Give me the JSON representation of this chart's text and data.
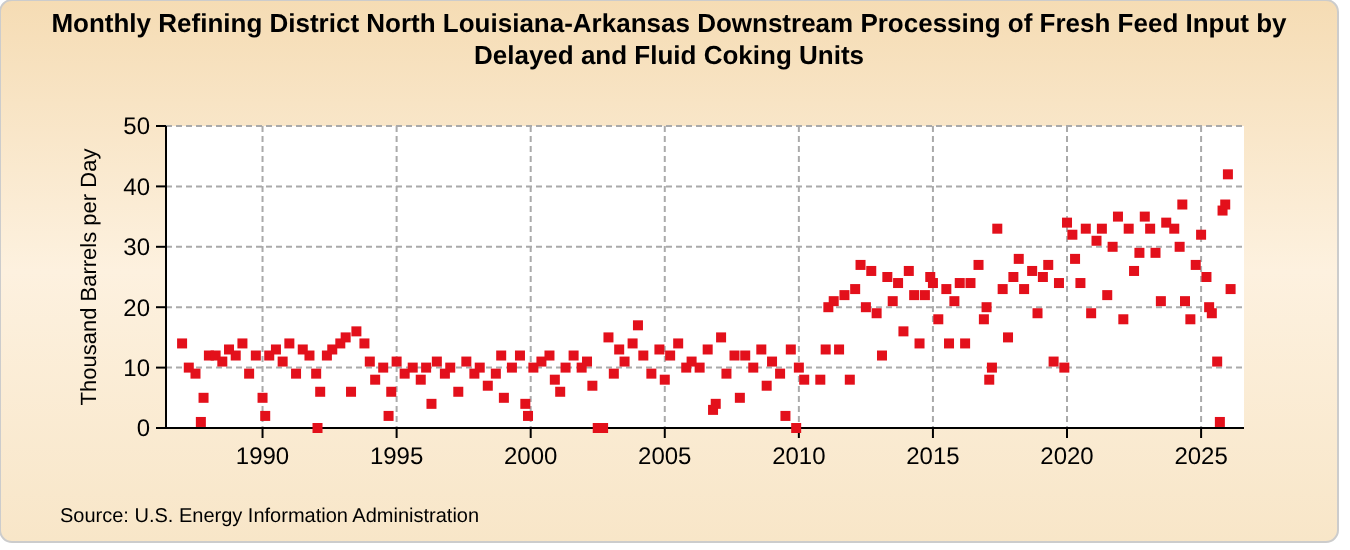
{
  "chart_data": {
    "type": "scatter",
    "title": "Monthly Refining District North Louisiana-Arkansas Downstream Processing of Fresh Feed Input by Delayed and Fluid Coking Units",
    "ylabel": "Thousand Barrels per Day",
    "annotations": [
      "Source: U.S. Energy Information Administration"
    ],
    "xlim": [
      1986.4,
      2026.6
    ],
    "xticks": [
      1990,
      1995,
      2000,
      2005,
      2010,
      2015,
      2020,
      2025
    ],
    "ylim": [
      0,
      50
    ],
    "yticks": [
      0,
      10,
      20,
      30,
      40,
      50
    ],
    "grid": true,
    "marker": "square",
    "series": [
      {
        "color": "#e3101b",
        "x": [
          1987.0,
          1987.25,
          1987.5,
          1987.7,
          1987.8,
          1988.0,
          1988.25,
          1988.5,
          1988.75,
          1989.0,
          1989.25,
          1989.5,
          1989.75,
          1990.0,
          1990.1,
          1990.25,
          1990.5,
          1990.75,
          1991.0,
          1991.25,
          1991.5,
          1991.75,
          1992.0,
          1992.05,
          1992.15,
          1992.4,
          1992.6,
          1992.9,
          1993.1,
          1993.3,
          1993.5,
          1993.8,
          1994.0,
          1994.2,
          1994.5,
          1994.7,
          1994.8,
          1995.0,
          1995.3,
          1995.6,
          1995.9,
          1996.1,
          1996.3,
          1996.5,
          1996.8,
          1997.0,
          1997.3,
          1997.6,
          1997.9,
          1998.1,
          1998.4,
          1998.7,
          1998.9,
          1999.0,
          1999.3,
          1999.6,
          1999.8,
          1999.9,
          2000.1,
          2000.4,
          2000.7,
          2000.9,
          2001.1,
          2001.3,
          2001.6,
          2001.9,
          2002.1,
          2002.3,
          2002.5,
          2002.7,
          2002.9,
          2003.1,
          2003.3,
          2003.5,
          2003.8,
          2004.0,
          2004.2,
          2004.5,
          2004.8,
          2005.0,
          2005.2,
          2005.5,
          2005.8,
          2006.0,
          2006.3,
          2006.6,
          2006.8,
          2006.9,
          2007.1,
          2007.3,
          2007.6,
          2007.8,
          2008.0,
          2008.3,
          2008.6,
          2008.8,
          2009.0,
          2009.3,
          2009.5,
          2009.7,
          2009.9,
          2010.0,
          2010.2,
          2010.8,
          2011.0,
          2011.1,
          2011.3,
          2011.5,
          2011.7,
          2011.9,
          2012.1,
          2012.3,
          2012.5,
          2012.7,
          2012.9,
          2013.1,
          2013.3,
          2013.5,
          2013.7,
          2013.9,
          2014.1,
          2014.3,
          2014.5,
          2014.7,
          2014.9,
          2015.0,
          2015.2,
          2015.5,
          2015.6,
          2015.8,
          2016.0,
          2016.2,
          2016.4,
          2016.7,
          2016.9,
          2017.0,
          2017.1,
          2017.2,
          2017.4,
          2017.6,
          2017.8,
          2018.0,
          2018.2,
          2018.4,
          2018.7,
          2018.9,
          2019.1,
          2019.3,
          2019.5,
          2019.7,
          2019.9,
          2020.0,
          2020.2,
          2020.3,
          2020.5,
          2020.7,
          2020.9,
          2021.1,
          2021.3,
          2021.5,
          2021.7,
          2021.9,
          2022.1,
          2022.3,
          2022.5,
          2022.7,
          2022.9,
          2023.1,
          2023.3,
          2023.5,
          2023.7,
          2024.0,
          2024.2,
          2024.3,
          2024.4,
          2024.6,
          2024.8,
          2025.0,
          2025.2,
          2025.3,
          2025.4,
          2025.6,
          2025.7,
          2025.8,
          2025.9,
          2026.0,
          2026.1
        ],
        "values": [
          14,
          10,
          9,
          1,
          5,
          12,
          12,
          11,
          13,
          12,
          14,
          9,
          12,
          5,
          2,
          12,
          13,
          11,
          14,
          9,
          13,
          12,
          9,
          0,
          6,
          12,
          13,
          14,
          15,
          6,
          16,
          14,
          11,
          8,
          10,
          2,
          6,
          11,
          9,
          10,
          8,
          10,
          4,
          11,
          9,
          10,
          6,
          11,
          9,
          10,
          7,
          9,
          12,
          5,
          10,
          12,
          4,
          2,
          10,
          11,
          12,
          8,
          6,
          10,
          12,
          10,
          11,
          7,
          0,
          0,
          15,
          9,
          13,
          11,
          14,
          17,
          12,
          9,
          13,
          8,
          12,
          14,
          10,
          11,
          10,
          13,
          3,
          4,
          15,
          9,
          12,
          5,
          12,
          10,
          13,
          7,
          11,
          9,
          2,
          13,
          0,
          10,
          8,
          8,
          13,
          20,
          21,
          13,
          22,
          8,
          23,
          27,
          20,
          26,
          19,
          12,
          25,
          21,
          24,
          16,
          26,
          22,
          14,
          22,
          25,
          24,
          18,
          23,
          14,
          21,
          24,
          14,
          24,
          27,
          18,
          20,
          8,
          10,
          33,
          23,
          15,
          25,
          28,
          23,
          26,
          19,
          25,
          27,
          11,
          24,
          10,
          34,
          32,
          28,
          24,
          33,
          19,
          31,
          33,
          22,
          30,
          35,
          18,
          33,
          26,
          29,
          35,
          33,
          29,
          21,
          34,
          33,
          30,
          37,
          21,
          18,
          27,
          32,
          25,
          20,
          19,
          11,
          1,
          36,
          37,
          42,
          23
        ]
      }
    ]
  }
}
